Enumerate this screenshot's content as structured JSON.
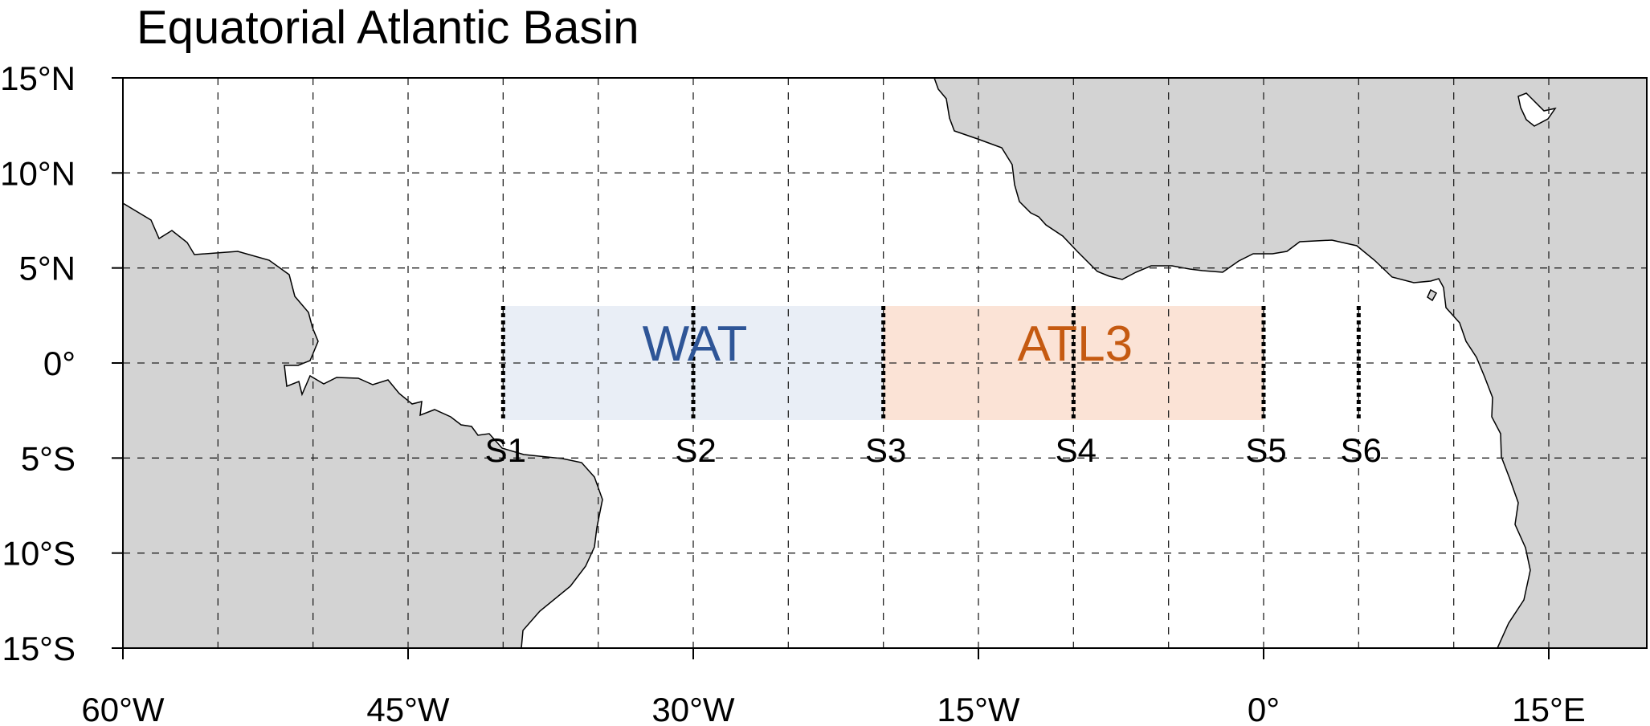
{
  "title": "Equatorial Atlantic Basin",
  "map_data": {
    "type": "map",
    "projection": "equirectangular",
    "lon_range": [
      -60,
      20
    ],
    "lat_range": [
      -15,
      15
    ],
    "grid": {
      "on": true,
      "style": "dashed",
      "lon_step_deg": 5,
      "lat_step_deg": 5
    },
    "x_ticks": [
      {
        "value": -60,
        "label": "60°W"
      },
      {
        "value": -45,
        "label": "45°W"
      },
      {
        "value": -30,
        "label": "30°W"
      },
      {
        "value": -15,
        "label": "15°W"
      },
      {
        "value": 0,
        "label": "0°"
      },
      {
        "value": 15,
        "label": "15°E"
      }
    ],
    "y_ticks": [
      {
        "value": 15,
        "label": "15°N"
      },
      {
        "value": 10,
        "label": "10°N"
      },
      {
        "value": 5,
        "label": "5°N"
      },
      {
        "value": 0,
        "label": "0°"
      },
      {
        "value": -5,
        "label": "5°S"
      },
      {
        "value": -10,
        "label": "10°S"
      },
      {
        "value": -15,
        "label": "15°S"
      }
    ],
    "regions": [
      {
        "name": "WAT",
        "lon": [
          -40,
          -20
        ],
        "lat": [
          -3,
          3
        ],
        "fill": "#e9eef6",
        "label_color": "#2e5597"
      },
      {
        "name": "ATL3",
        "lon": [
          -20,
          0
        ],
        "lat": [
          -3,
          3
        ],
        "fill": "#fbe3d6",
        "label_color": "#c55a11"
      }
    ],
    "sections": [
      {
        "name": "S1",
        "lon": -40,
        "lat": [
          -3,
          3
        ]
      },
      {
        "name": "S2",
        "lon": -30,
        "lat": [
          -3,
          3
        ]
      },
      {
        "name": "S3",
        "lon": -20,
        "lat": [
          -3,
          3
        ]
      },
      {
        "name": "S4",
        "lon": -10,
        "lat": [
          -3,
          3
        ]
      },
      {
        "name": "S5",
        "lon": 0,
        "lat": [
          -3,
          3
        ]
      },
      {
        "name": "S6",
        "lon": 5,
        "lat": [
          -3,
          3
        ]
      }
    ]
  },
  "colors": {
    "land": "#d3d3d3",
    "ocean": "#ffffff",
    "grid": "#222222",
    "frame": "#000000",
    "section_line": "#000000",
    "text": "#000000"
  }
}
